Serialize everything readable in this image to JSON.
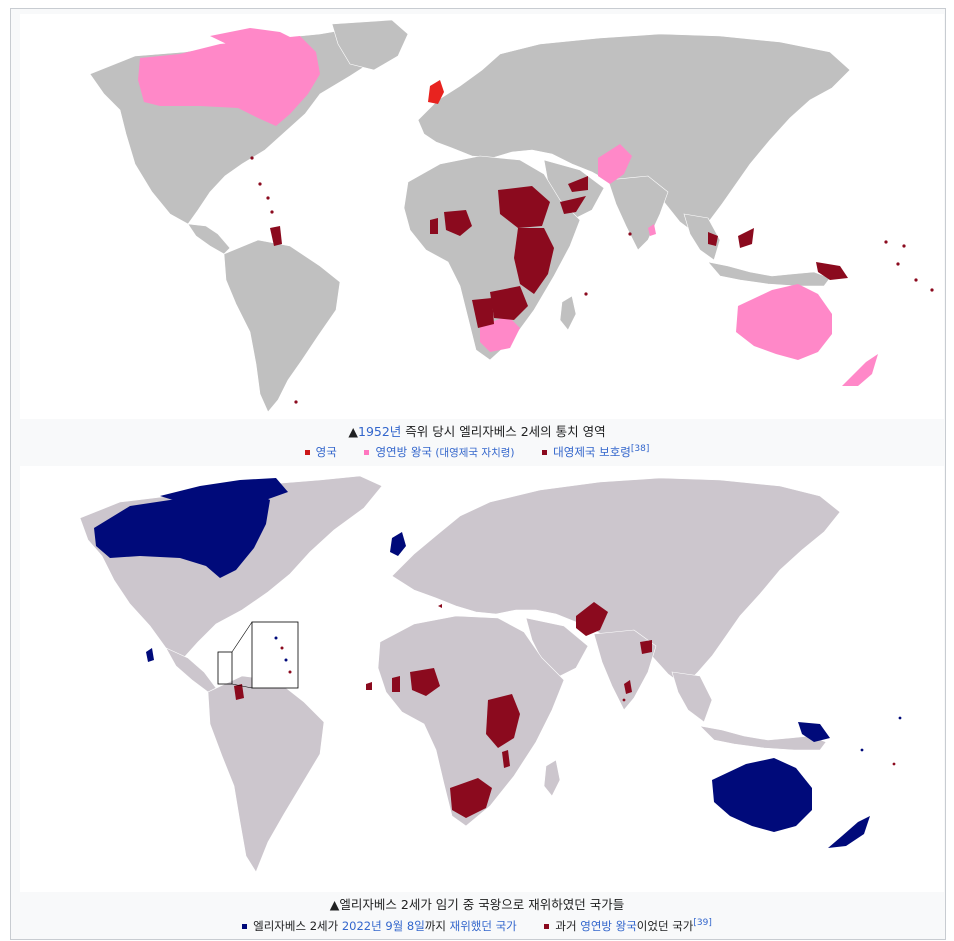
{
  "map1": {
    "caption": {
      "prefix": "▲",
      "year_link": "1952년",
      "rest": " 즉위 당시 엘리자베스 2세의 통치 영역"
    },
    "legend": [
      {
        "color": "#cc1818",
        "label": "영국",
        "link": true,
        "extra": "",
        "ref": ""
      },
      {
        "color": "#ff77c0",
        "label": "영연방 왕국",
        "link": true,
        "extra": " (대영제국 자치령)",
        "ref": ""
      },
      {
        "color": "#8b0a1e",
        "label": "대영제국 보호령",
        "link": true,
        "extra": "",
        "ref": "[38]"
      }
    ],
    "colors": {
      "land": "#c0c0c0",
      "ocean": "#ffffff",
      "uk": "#e8231f",
      "realm": "#ff88c8",
      "protectorate": "#8b0a1e"
    }
  },
  "map2": {
    "caption": {
      "prefix": "▲",
      "text": "엘리자베스 2세가 임기 중 국왕으로 재위하였던 국가들"
    },
    "legend": {
      "item1": {
        "color": "#000a7a",
        "t1": "엘리자베스 2세가 ",
        "date_link": "2022년 9월 8일",
        "t2": "까지 ",
        "reign_link": "재위했던 국가",
        "ref": ""
      },
      "item2": {
        "color": "#8b0a1e",
        "t1": "과거 ",
        "realm_link": "영연방 왕국",
        "t2": "이었던 국가",
        "ref": "[39]"
      }
    },
    "colors": {
      "land": "#ccc6cd",
      "ocean": "#ffffff",
      "current": "#000a7a",
      "former": "#8b0a1e"
    }
  }
}
